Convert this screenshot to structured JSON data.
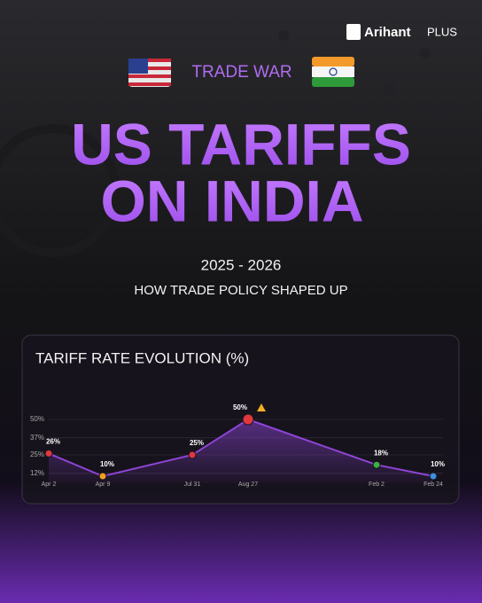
{
  "brand": {
    "name": "Arihant",
    "suffix": "PLUS"
  },
  "header": {
    "label": "TRADE WAR",
    "title_lines": [
      "US TARIFFS",
      "ON INDIA"
    ],
    "years": "2025 - 2026",
    "subtitle": "HOW TRADE POLICY SHAPED UP"
  },
  "chart_data": {
    "type": "line",
    "title": "TARIFF RATE EVOLUTION (%)",
    "categories": [
      "Apr 2",
      "Apr 9",
      "Jul 31",
      "Aug 27",
      "Feb 2",
      "Feb 24"
    ],
    "values": [
      26,
      10,
      25,
      50,
      18,
      10
    ],
    "value_labels": [
      "26%",
      "10%",
      "25%",
      "50%",
      "18%",
      "10%"
    ],
    "color": "#8e44d6",
    "point_colors": [
      "#e0383e",
      "#f0a020",
      "#e0383e",
      "#e0383e",
      "#3cb043",
      "#3d8fe0"
    ],
    "ylim": [
      5,
      55
    ],
    "yticks": [
      {
        "value": 12,
        "label": "12%"
      },
      {
        "value": 25,
        "label": "25%"
      },
      {
        "value": 37,
        "label": "37%"
      },
      {
        "value": 50,
        "label": "50%"
      }
    ],
    "grid": true
  }
}
